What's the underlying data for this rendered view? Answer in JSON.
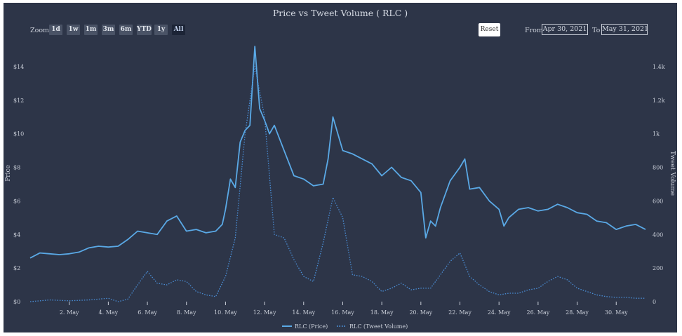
{
  "chart_data": {
    "type": "line",
    "title": "Price vs Tweet Volume ( RLC )",
    "xlabel": "",
    "ylabel_left": "Price",
    "ylabel_right": "Tweet Volume",
    "x_range": [
      "2021-04-30",
      "2021-05-31"
    ],
    "x_ticks": [
      "2. May",
      "4. May",
      "6. May",
      "8. May",
      "10. May",
      "12. May",
      "14. May",
      "16. May",
      "18. May",
      "20. May",
      "22. May",
      "24. May",
      "26. May",
      "28. May",
      "30. May"
    ],
    "y_left_range": [
      0,
      15
    ],
    "y_left_ticks": [
      "$0",
      "$2",
      "$4",
      "$6",
      "$8",
      "$10",
      "$12",
      "$14"
    ],
    "y_right_range": [
      0,
      1500
    ],
    "y_right_ticks": [
      "0",
      "200",
      "400",
      "600",
      "800",
      "1k",
      "1.2k",
      "1.4k"
    ],
    "grid": false,
    "legend_position": "bottom-center",
    "series": [
      {
        "name": "RLC (Price)",
        "axis": "left",
        "style": "solid",
        "color": "#5aa9e6",
        "points": [
          [
            "2021-04-30T00:00",
            2.6
          ],
          [
            "2021-04-30T12:00",
            2.9
          ],
          [
            "2021-05-01T00:00",
            2.85
          ],
          [
            "2021-05-01T12:00",
            2.8
          ],
          [
            "2021-05-02T00:00",
            2.85
          ],
          [
            "2021-05-02T12:00",
            2.95
          ],
          [
            "2021-05-03T00:00",
            3.2
          ],
          [
            "2021-05-03T12:00",
            3.3
          ],
          [
            "2021-05-04T00:00",
            3.25
          ],
          [
            "2021-05-04T12:00",
            3.3
          ],
          [
            "2021-05-05T00:00",
            3.7
          ],
          [
            "2021-05-05T12:00",
            4.2
          ],
          [
            "2021-05-06T00:00",
            4.1
          ],
          [
            "2021-05-06T12:00",
            4.0
          ],
          [
            "2021-05-07T00:00",
            4.8
          ],
          [
            "2021-05-07T12:00",
            5.1
          ],
          [
            "2021-05-08T00:00",
            4.2
          ],
          [
            "2021-05-08T12:00",
            4.3
          ],
          [
            "2021-05-09T00:00",
            4.1
          ],
          [
            "2021-05-09T12:00",
            4.2
          ],
          [
            "2021-05-09T20:00",
            4.6
          ],
          [
            "2021-05-10T00:00",
            5.5
          ],
          [
            "2021-05-10T06:00",
            7.3
          ],
          [
            "2021-05-10T12:00",
            6.8
          ],
          [
            "2021-05-10T18:00",
            9.5
          ],
          [
            "2021-05-11T00:00",
            10.2
          ],
          [
            "2021-05-11T06:00",
            10.5
          ],
          [
            "2021-05-11T12:00",
            15.2
          ],
          [
            "2021-05-11T18:00",
            11.5
          ],
          [
            "2021-05-12T00:00",
            10.8
          ],
          [
            "2021-05-12T06:00",
            10.0
          ],
          [
            "2021-05-12T12:00",
            10.5
          ],
          [
            "2021-05-13T00:00",
            9.0
          ],
          [
            "2021-05-13T12:00",
            7.5
          ],
          [
            "2021-05-14T00:00",
            7.3
          ],
          [
            "2021-05-14T12:00",
            6.9
          ],
          [
            "2021-05-15T00:00",
            7.0
          ],
          [
            "2021-05-15T06:00",
            8.5
          ],
          [
            "2021-05-15T12:00",
            11.0
          ],
          [
            "2021-05-15T18:00",
            10.0
          ],
          [
            "2021-05-16T00:00",
            9.0
          ],
          [
            "2021-05-16T12:00",
            8.8
          ],
          [
            "2021-05-17T00:00",
            8.5
          ],
          [
            "2021-05-17T12:00",
            8.2
          ],
          [
            "2021-05-18T00:00",
            7.5
          ],
          [
            "2021-05-18T12:00",
            8.0
          ],
          [
            "2021-05-19T00:00",
            7.4
          ],
          [
            "2021-05-19T12:00",
            7.2
          ],
          [
            "2021-05-20T00:00",
            6.5
          ],
          [
            "2021-05-20T06:00",
            3.8
          ],
          [
            "2021-05-20T12:00",
            4.8
          ],
          [
            "2021-05-20T18:00",
            4.5
          ],
          [
            "2021-05-21T00:00",
            5.6
          ],
          [
            "2021-05-21T12:00",
            7.2
          ],
          [
            "2021-05-22T00:00",
            8.0
          ],
          [
            "2021-05-22T06:00",
            8.5
          ],
          [
            "2021-05-22T12:00",
            6.7
          ],
          [
            "2021-05-23T00:00",
            6.8
          ],
          [
            "2021-05-23T12:00",
            6.0
          ],
          [
            "2021-05-24T00:00",
            5.5
          ],
          [
            "2021-05-24T06:00",
            4.5
          ],
          [
            "2021-05-24T12:00",
            5.0
          ],
          [
            "2021-05-25T00:00",
            5.5
          ],
          [
            "2021-05-25T12:00",
            5.6
          ],
          [
            "2021-05-26T00:00",
            5.4
          ],
          [
            "2021-05-26T12:00",
            5.5
          ],
          [
            "2021-05-27T00:00",
            5.8
          ],
          [
            "2021-05-27T12:00",
            5.6
          ],
          [
            "2021-05-28T00:00",
            5.3
          ],
          [
            "2021-05-28T12:00",
            5.2
          ],
          [
            "2021-05-29T00:00",
            4.8
          ],
          [
            "2021-05-29T12:00",
            4.7
          ],
          [
            "2021-05-30T00:00",
            4.3
          ],
          [
            "2021-05-30T12:00",
            4.5
          ],
          [
            "2021-05-31T00:00",
            4.6
          ],
          [
            "2021-05-31T12:00",
            4.3
          ]
        ]
      },
      {
        "name": "RLC (Tweet Volume)",
        "axis": "right",
        "style": "dotted",
        "color": "#4a8ed6",
        "points": [
          [
            "2021-04-30T00:00",
            0
          ],
          [
            "2021-05-01T00:00",
            10
          ],
          [
            "2021-05-02T00:00",
            5
          ],
          [
            "2021-05-03T00:00",
            10
          ],
          [
            "2021-05-04T00:00",
            20
          ],
          [
            "2021-05-04T12:00",
            0
          ],
          [
            "2021-05-05T00:00",
            15
          ],
          [
            "2021-05-05T12:00",
            100
          ],
          [
            "2021-05-06T00:00",
            180
          ],
          [
            "2021-05-06T12:00",
            110
          ],
          [
            "2021-05-07T00:00",
            100
          ],
          [
            "2021-05-07T12:00",
            130
          ],
          [
            "2021-05-08T00:00",
            120
          ],
          [
            "2021-05-08T12:00",
            60
          ],
          [
            "2021-05-09T00:00",
            40
          ],
          [
            "2021-05-09T12:00",
            30
          ],
          [
            "2021-05-10T00:00",
            150
          ],
          [
            "2021-05-10T12:00",
            380
          ],
          [
            "2021-05-11T00:00",
            1000
          ],
          [
            "2021-05-11T12:00",
            1400
          ],
          [
            "2021-05-12T00:00",
            1100
          ],
          [
            "2021-05-12T12:00",
            400
          ],
          [
            "2021-05-13T00:00",
            380
          ],
          [
            "2021-05-13T12:00",
            250
          ],
          [
            "2021-05-14T00:00",
            150
          ],
          [
            "2021-05-14T12:00",
            120
          ],
          [
            "2021-05-15T00:00",
            350
          ],
          [
            "2021-05-15T12:00",
            620
          ],
          [
            "2021-05-16T00:00",
            500
          ],
          [
            "2021-05-16T12:00",
            160
          ],
          [
            "2021-05-17T00:00",
            150
          ],
          [
            "2021-05-17T12:00",
            120
          ],
          [
            "2021-05-18T00:00",
            60
          ],
          [
            "2021-05-18T12:00",
            80
          ],
          [
            "2021-05-19T00:00",
            110
          ],
          [
            "2021-05-19T12:00",
            70
          ],
          [
            "2021-05-20T00:00",
            80
          ],
          [
            "2021-05-20T12:00",
            80
          ],
          [
            "2021-05-21T00:00",
            160
          ],
          [
            "2021-05-21T12:00",
            240
          ],
          [
            "2021-05-22T00:00",
            290
          ],
          [
            "2021-05-22T12:00",
            150
          ],
          [
            "2021-05-23T00:00",
            100
          ],
          [
            "2021-05-23T12:00",
            60
          ],
          [
            "2021-05-24T00:00",
            40
          ],
          [
            "2021-05-24T12:00",
            50
          ],
          [
            "2021-05-25T00:00",
            50
          ],
          [
            "2021-05-25T12:00",
            70
          ],
          [
            "2021-05-26T00:00",
            80
          ],
          [
            "2021-05-26T12:00",
            120
          ],
          [
            "2021-05-27T00:00",
            150
          ],
          [
            "2021-05-27T12:00",
            130
          ],
          [
            "2021-05-28T00:00",
            80
          ],
          [
            "2021-05-28T12:00",
            60
          ],
          [
            "2021-05-29T00:00",
            40
          ],
          [
            "2021-05-29T12:00",
            30
          ],
          [
            "2021-05-30T00:00",
            25
          ],
          [
            "2021-05-30T12:00",
            25
          ],
          [
            "2021-05-31T00:00",
            20
          ],
          [
            "2021-05-31T12:00",
            20
          ]
        ]
      }
    ]
  },
  "range_selector": {
    "zoom_label": "Zoom",
    "buttons": [
      "1d",
      "1w",
      "1m",
      "3m",
      "6m",
      "YTD",
      "1y",
      "All"
    ],
    "selected": "All",
    "reset_label": "Reset",
    "from_label": "From",
    "from_value": "Apr 30, 2021",
    "to_label": "To",
    "to_value": "May 31, 2021"
  },
  "colors": {
    "background": "#2d3548",
    "price_line": "#5aa9e6",
    "volume_line": "#4a8ed6",
    "text": "#c9ced8",
    "active_button": "#1c2436"
  }
}
